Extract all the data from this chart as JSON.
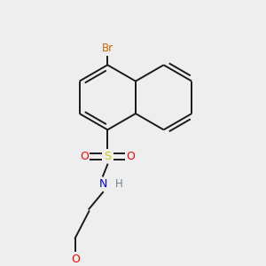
{
  "bg_color": "#eeeeee",
  "bond_color": "#1a1a1a",
  "bond_width": 1.4,
  "atom_colors": {
    "Br": "#cc6600",
    "S": "#cccc00",
    "O": "#ff0000",
    "N": "#0000ee",
    "H": "#708090",
    "C": "#1a1a1a"
  },
  "font_size_atom": 8.5
}
